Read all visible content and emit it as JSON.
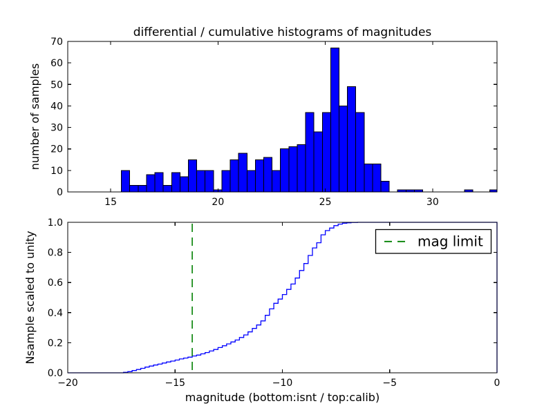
{
  "figure": {
    "background": "#ffffff"
  },
  "chart_data": [
    {
      "id": "top-differential-histogram",
      "type": "bar",
      "title": "differential / cumulative histograms of magnitudes",
      "ylabel": "number of samples",
      "xlabel": "",
      "xlim": [
        13.0,
        33.0
      ],
      "ylim": [
        0,
        70
      ],
      "xticks": [
        15,
        20,
        25,
        30
      ],
      "xtick_labels": [
        "15",
        "20",
        "25",
        "30"
      ],
      "yticks": [
        0,
        10,
        20,
        30,
        40,
        50,
        60,
        70
      ],
      "ytick_labels": [
        "0",
        "10",
        "20",
        "30",
        "40",
        "50",
        "60",
        "70"
      ],
      "bin_width": 0.39,
      "bin_left": [
        15.5,
        15.89,
        16.28,
        16.67,
        17.06,
        17.45,
        17.84,
        18.23,
        18.62,
        19.01,
        19.4,
        19.79,
        20.18,
        20.57,
        20.96,
        21.35,
        21.74,
        22.13,
        22.52,
        22.91,
        23.3,
        23.69,
        24.08,
        24.47,
        24.86,
        25.25,
        25.64,
        26.03,
        26.42,
        26.81,
        27.2,
        27.59,
        28.37,
        28.76,
        29.15,
        31.49,
        32.66
      ],
      "values": [
        10,
        3,
        3,
        8,
        9,
        3,
        9,
        7,
        15,
        10,
        10,
        1,
        10,
        15,
        18,
        10,
        15,
        16,
        10,
        20,
        21,
        22,
        37,
        28,
        37,
        67,
        40,
        49,
        37,
        13,
        13,
        5,
        1,
        1,
        1,
        1,
        1
      ],
      "bar_color": "#0000ff",
      "bar_edge_color": "#000000",
      "grid": false
    },
    {
      "id": "bottom-cumulative-histogram",
      "type": "line",
      "subtype": "cumulative-step",
      "title": "",
      "ylabel": "Nsample scaled to unity",
      "xlabel": "magnitude (bottom:isnt / top:calib)",
      "xlim": [
        -20,
        0
      ],
      "ylim": [
        0.0,
        1.0
      ],
      "xticks": [
        -20,
        -15,
        -10,
        -5,
        0
      ],
      "xtick_labels": [
        "−20",
        "−15",
        "−10",
        "−5",
        "0"
      ],
      "yticks": [
        0.0,
        0.2,
        0.4,
        0.6,
        0.8,
        1.0
      ],
      "ytick_labels": [
        "0.0",
        "0.2",
        "0.4",
        "0.6",
        "0.8",
        "1.0"
      ],
      "line_color": "#0000ff",
      "close_at_right": true,
      "curve_points": [
        [
          -20,
          0
        ],
        [
          -17.4,
          0.003
        ],
        [
          -17.2,
          0.008
        ],
        [
          -17.0,
          0.015
        ],
        [
          -16.8,
          0.022
        ],
        [
          -16.6,
          0.03
        ],
        [
          -16.4,
          0.038
        ],
        [
          -16.2,
          0.045
        ],
        [
          -16.0,
          0.052
        ],
        [
          -15.8,
          0.058
        ],
        [
          -15.6,
          0.065
        ],
        [
          -15.4,
          0.072
        ],
        [
          -15.2,
          0.078
        ],
        [
          -15.0,
          0.085
        ],
        [
          -14.8,
          0.092
        ],
        [
          -14.6,
          0.098
        ],
        [
          -14.4,
          0.104
        ],
        [
          -14.2,
          0.112
        ],
        [
          -14.0,
          0.118
        ],
        [
          -13.8,
          0.126
        ],
        [
          -13.6,
          0.135
        ],
        [
          -13.4,
          0.145
        ],
        [
          -13.2,
          0.155
        ],
        [
          -13.0,
          0.168
        ],
        [
          -12.8,
          0.18
        ],
        [
          -12.6,
          0.192
        ],
        [
          -12.4,
          0.205
        ],
        [
          -12.2,
          0.218
        ],
        [
          -12.0,
          0.235
        ],
        [
          -11.8,
          0.252
        ],
        [
          -11.6,
          0.272
        ],
        [
          -11.4,
          0.295
        ],
        [
          -11.2,
          0.318
        ],
        [
          -11.0,
          0.345
        ],
        [
          -10.8,
          0.382
        ],
        [
          -10.6,
          0.425
        ],
        [
          -10.4,
          0.462
        ],
        [
          -10.2,
          0.49
        ],
        [
          -10.0,
          0.52
        ],
        [
          -9.8,
          0.554
        ],
        [
          -9.6,
          0.59
        ],
        [
          -9.4,
          0.63
        ],
        [
          -9.2,
          0.68
        ],
        [
          -9.0,
          0.726
        ],
        [
          -8.8,
          0.78
        ],
        [
          -8.6,
          0.83
        ],
        [
          -8.4,
          0.864
        ],
        [
          -8.2,
          0.917
        ],
        [
          -8.0,
          0.945
        ],
        [
          -7.8,
          0.962
        ],
        [
          -7.6,
          0.978
        ],
        [
          -7.4,
          0.988
        ],
        [
          -7.2,
          0.994
        ],
        [
          -7.0,
          0.997
        ],
        [
          -6.8,
          0.999
        ],
        [
          -6.5,
          1.0
        ],
        [
          0,
          1.0
        ]
      ],
      "mag_limit": {
        "value": -14.2,
        "color": "#008000",
        "style": "dashed"
      },
      "legend": {
        "label": "mag limit",
        "line_color": "#008000",
        "position": "upper right"
      },
      "grid": false
    }
  ]
}
